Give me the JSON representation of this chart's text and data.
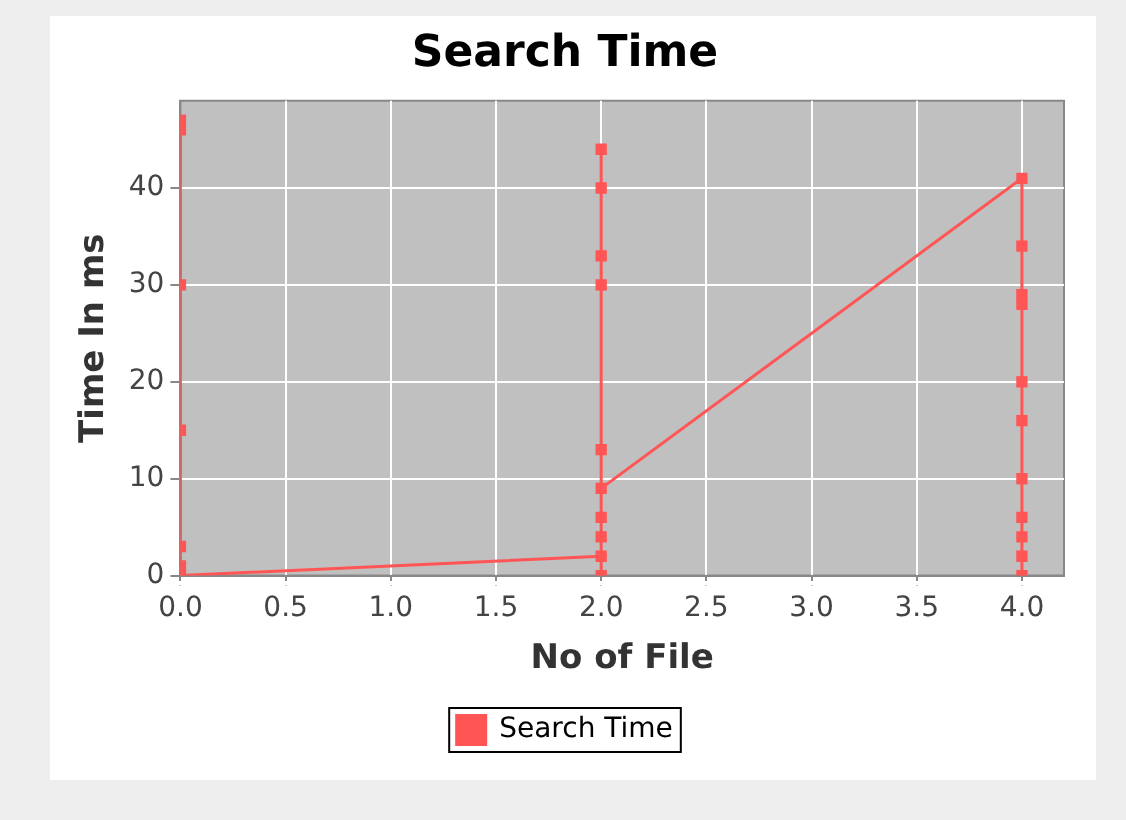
{
  "chart_data": {
    "type": "line",
    "title": "Search Time",
    "xlabel": "No of File",
    "ylabel": "Time In ms",
    "xlim": [
      0,
      4.2
    ],
    "xticks": [
      {
        "value": 0,
        "label": "0.0"
      },
      {
        "value": 0.5,
        "label": "0.5"
      },
      {
        "value": 1,
        "label": "1.0"
      },
      {
        "value": 1.5,
        "label": "1.5"
      },
      {
        "value": 2,
        "label": "2.0"
      },
      {
        "value": 2.5,
        "label": "2.5"
      },
      {
        "value": 3,
        "label": "3.0"
      },
      {
        "value": 3.5,
        "label": "3.5"
      },
      {
        "value": 4,
        "label": "4.0"
      }
    ],
    "ylim": [
      0,
      49
    ],
    "yticks": [
      0,
      10,
      20,
      30,
      40
    ],
    "series": [
      {
        "name": "Search Time",
        "color": "#ff5555",
        "x": [
          0,
          0,
          0,
          0,
          0,
          0,
          0,
          2,
          2,
          2,
          2,
          2,
          2,
          2,
          2,
          2,
          2,
          4,
          4,
          4,
          4,
          4,
          4,
          4,
          4,
          4,
          4,
          4
        ],
        "values": [
          47,
          46,
          30,
          15,
          3,
          1,
          0,
          2,
          0,
          4,
          6,
          44,
          40,
          33,
          30,
          13,
          9,
          41,
          34,
          29,
          28,
          20,
          16,
          10,
          6,
          4,
          2,
          0
        ]
      }
    ],
    "grid": true,
    "legend": "bottom",
    "marker": "square",
    "line_style": "solid"
  }
}
